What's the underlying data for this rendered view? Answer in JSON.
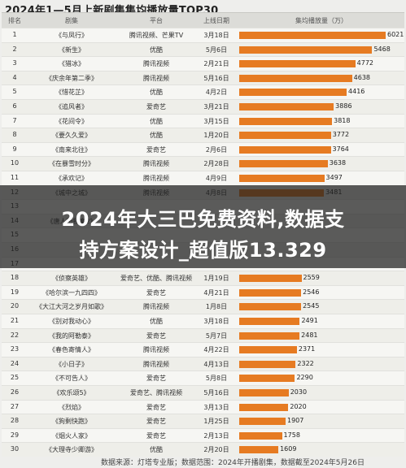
{
  "chart_data": {
    "type": "table",
    "title": "2024年1—5月上新剧集集均播放量TOP30",
    "columns": [
      "排名",
      "剧集",
      "平台",
      "上线日期",
      "集均播放量（万）"
    ],
    "rows": [
      {
        "rank": "1",
        "name": "《与凤行》",
        "platform": "腾讯视频、芒果TV",
        "date": "3月18日",
        "value": 6021
      },
      {
        "rank": "2",
        "name": "《新生》",
        "platform": "优酷",
        "date": "5月6日",
        "value": 5468
      },
      {
        "rank": "3",
        "name": "《猎冰》",
        "platform": "腾讯视频",
        "date": "2月21日",
        "value": 4772
      },
      {
        "rank": "4",
        "name": "《庆余年第二季》",
        "platform": "腾讯视频",
        "date": "5月16日",
        "value": 4638
      },
      {
        "rank": "5",
        "name": "《惜花芷》",
        "platform": "优酷",
        "date": "4月2日",
        "value": 4416
      },
      {
        "rank": "6",
        "name": "《追风者》",
        "platform": "爱奇艺",
        "date": "3月21日",
        "value": 3886
      },
      {
        "rank": "7",
        "name": "《花间令》",
        "platform": "优酷",
        "date": "3月15日",
        "value": 3818
      },
      {
        "rank": "8",
        "name": "《要久久爱》",
        "platform": "优酷",
        "date": "1月20日",
        "value": 3772
      },
      {
        "rank": "9",
        "name": "《南来北往》",
        "platform": "爱奇艺",
        "date": "2月6日",
        "value": 3764
      },
      {
        "rank": "10",
        "name": "《在暴雪时分》",
        "platform": "腾讯视频",
        "date": "2月28日",
        "value": 3638
      },
      {
        "rank": "11",
        "name": "《承欢记》",
        "platform": "腾讯视频",
        "date": "4月9日",
        "value": 3497
      },
      {
        "rank": "12",
        "name": "《城中之城》",
        "platform": "腾讯视频",
        "date": "4月8日",
        "value": 3481
      },
      {
        "rank": "13",
        "name": "",
        "platform": "",
        "date": "",
        "value": null
      },
      {
        "rank": "14",
        "name": "《唐人街探案2》",
        "platform": "",
        "date": "",
        "value": null
      },
      {
        "rank": "15",
        "name": "",
        "platform": "",
        "date": "",
        "value": null
      },
      {
        "rank": "16",
        "name": "",
        "platform": "",
        "date": "",
        "value": null
      },
      {
        "rank": "17",
        "name": "",
        "platform": "",
        "date": "",
        "value": null
      },
      {
        "rank": "18",
        "name": "《侦察英雄》",
        "platform": "爱奇艺、优酷、腾讯视频",
        "date": "1月19日",
        "value": 2559
      },
      {
        "rank": "19",
        "name": "《哈尔滨一九四四》",
        "platform": "爱奇艺",
        "date": "4月21日",
        "value": 2546
      },
      {
        "rank": "20",
        "name": "《大江大河之岁月如歌》",
        "platform": "腾讯视频",
        "date": "1月8日",
        "value": 2545
      },
      {
        "rank": "21",
        "name": "《别对我动心》",
        "platform": "优酷",
        "date": "3月18日",
        "value": 2491
      },
      {
        "rank": "22",
        "name": "《我的阿勒泰》",
        "platform": "爱奇艺",
        "date": "5月7日",
        "value": 2481
      },
      {
        "rank": "23",
        "name": "《春色寄情人》",
        "platform": "腾讯视频",
        "date": "4月22日",
        "value": 2371
      },
      {
        "rank": "24",
        "name": "《小日子》",
        "platform": "腾讯视频",
        "date": "4月13日",
        "value": 2322
      },
      {
        "rank": "25",
        "name": "《不可告人》",
        "platform": "爱奇艺",
        "date": "5月8日",
        "value": 2290
      },
      {
        "rank": "26",
        "name": "《欢乐颂5》",
        "platform": "爱奇艺、腾讯视频",
        "date": "5月16日",
        "value": 2030
      },
      {
        "rank": "27",
        "name": "《烈焰》",
        "platform": "爱奇艺",
        "date": "3月13日",
        "value": 2020
      },
      {
        "rank": "28",
        "name": "《狗剩快跑》",
        "platform": "爱奇艺",
        "date": "1月25日",
        "value": 1907
      },
      {
        "rank": "29",
        "name": "《烟火人家》",
        "platform": "爱奇艺",
        "date": "2月13日",
        "value": 1758
      },
      {
        "rank": "30",
        "name": "《大理寺少卿游》",
        "platform": "优酷",
        "date": "2月20日",
        "value": 1609
      }
    ],
    "xlim": [
      0,
      6021
    ],
    "bar_color": "#e67b22"
  },
  "overlay": {
    "line1": "2024年大三巴免费资料,数据支",
    "line2": "持方案设计_超值版13.329"
  },
  "footer": "数据来源：灯塔专业版；数据范围：2024年开播剧集，数据截至2024年5月26日"
}
